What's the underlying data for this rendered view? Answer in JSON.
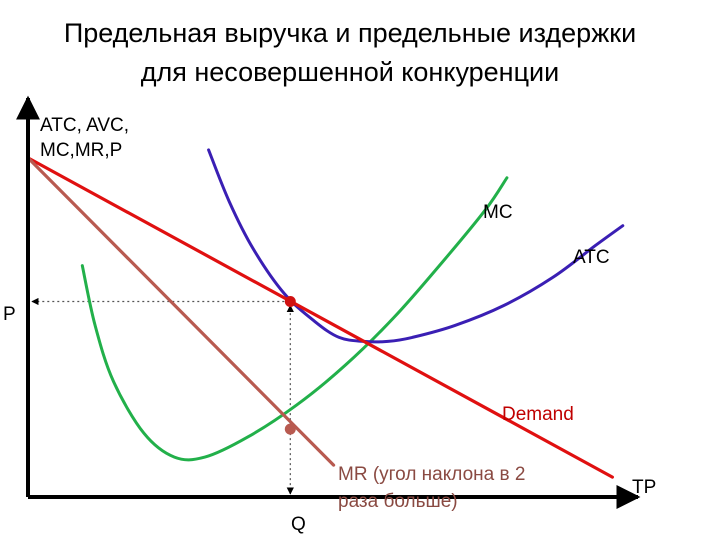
{
  "title_line1": "Предельная выручка и предельные издержки",
  "title_line2": "для несовершенной конкуренции",
  "colors": {
    "axes": "#000000",
    "demand": "#e01010",
    "mr": "#b85a50",
    "mc": "#22b04a",
    "atc": "#3a1fb4",
    "markers": "#d01010",
    "guides": "#555555"
  },
  "chart_data": {
    "type": "line",
    "title": "Предельная выручка и предельные издержки для несовершенной конкуренции",
    "xlabel": "ТР",
    "ylabel_line1": "ATC, AVC,",
    "ylabel_line2": "MC,MR,P",
    "xlim": [
      0,
      100
    ],
    "ylim": [
      0,
      100
    ],
    "grid": false,
    "series": [
      {
        "name": "MC",
        "label": "MC",
        "color": "#22b04a",
        "points": [
          [
            8.9,
            58
          ],
          [
            11,
            43
          ],
          [
            14,
            29
          ],
          [
            19,
            16
          ],
          [
            24,
            10
          ],
          [
            29,
            10
          ],
          [
            36,
            15
          ],
          [
            44,
            23
          ],
          [
            52,
            33
          ],
          [
            60,
            45
          ],
          [
            68,
            59
          ],
          [
            75,
            72
          ],
          [
            78.5,
            80
          ]
        ]
      },
      {
        "name": "ATC",
        "label": "ATC",
        "color": "#3a1fb4",
        "points": [
          [
            29.6,
            87
          ],
          [
            33,
            74
          ],
          [
            37,
            62
          ],
          [
            42,
            51
          ],
          [
            47,
            44
          ],
          [
            51,
            40
          ],
          [
            55,
            39
          ],
          [
            59,
            39
          ],
          [
            63,
            40
          ],
          [
            70,
            43
          ],
          [
            78,
            48
          ],
          [
            86,
            55
          ],
          [
            93,
            63
          ],
          [
            97.5,
            68
          ]
        ]
      },
      {
        "name": "Demand",
        "label": "Demand",
        "color": "#e01010",
        "points": [
          [
            0,
            85
          ],
          [
            95.8,
            5
          ]
        ]
      },
      {
        "name": "MR",
        "label": "MR (угол наклона в 2 раза больше)",
        "color": "#b85a50",
        "points": [
          [
            0,
            85
          ],
          [
            50.1,
            8
          ]
        ]
      }
    ],
    "markers": [
      {
        "label": "P",
        "x": 43,
        "y": 49
      },
      {
        "label": "Q",
        "x": 43,
        "y": 17
      }
    ]
  },
  "labels": {
    "mc": "MC",
    "atc": "ATC",
    "demand": "Demand",
    "mr_line1": "MR (угол наклона в 2",
    "mr_line2": "раза больше)",
    "p": "P",
    "q": "Q",
    "tp": "ТР",
    "y_line1": "ATC, AVC,",
    "y_line2": "MC,MR,P"
  }
}
